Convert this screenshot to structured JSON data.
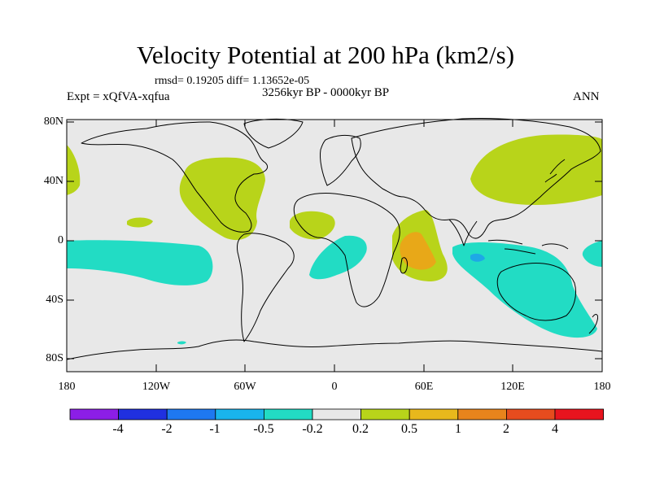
{
  "title": "Velocity Potential at 200 hPa (km2/s)",
  "stats": "rmsd= 0.19205  diff= 1.13652e-05",
  "experiment": "Expt = xQfVA-xqfua",
  "period": "3256kyr BP - 0000kyr BP",
  "season": "ANN",
  "lat_ticks": [
    "80N",
    "40N",
    "0",
    "40S",
    "80S"
  ],
  "lon_ticks": [
    "180",
    "120W",
    "60W",
    "0",
    "60E",
    "120E",
    "180"
  ],
  "colorbar": {
    "labels": [
      "-4",
      "-2",
      "-1",
      "-0.5",
      "-0.2",
      "0.2",
      "0.5",
      "1",
      "2",
      "4"
    ],
    "colors": [
      "#8c1ee6",
      "#2030e0",
      "#1e78f0",
      "#19b4ec",
      "#22dcc4",
      "#e8e8e8",
      "#b8d41a",
      "#e8b81c",
      "#e8841c",
      "#e64c1e",
      "#e8141e"
    ]
  },
  "map_colors": {
    "ocean_bg": "#e8e8e8",
    "positive": "#b8d41a",
    "positive_strong": "#e8a818",
    "negative": "#22dcc4",
    "negative_strong": "#1ea8e6",
    "coast": "#000000"
  }
}
